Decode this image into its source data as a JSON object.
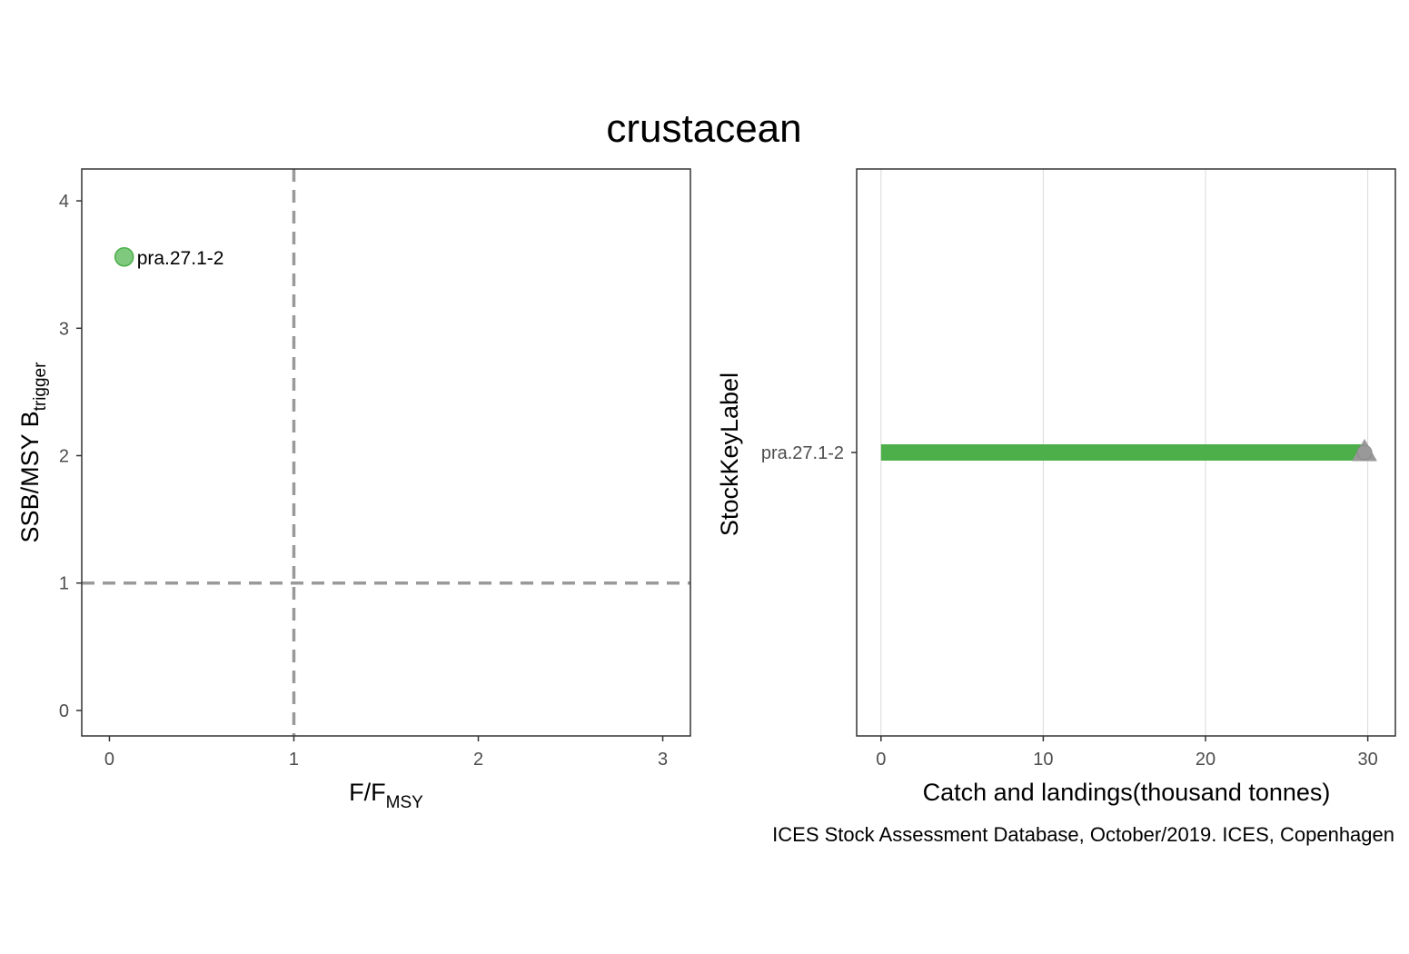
{
  "title": "crustacean",
  "caption": "ICES Stock Assessment Database, October/2019. ICES, Copenhagen",
  "colors": {
    "point_fill": "#7fc97f",
    "point_stroke": "#4daf4a",
    "bar": "#4daf4a",
    "marker": "#999999",
    "ref_line": "#999999",
    "grid": "#d9d9d9",
    "panel_border": "#333333"
  },
  "chart_data": [
    {
      "type": "scatter",
      "xlabel": "F/F",
      "xlabel_sub": "MSY",
      "ylabel": "SSB/MSY B",
      "ylabel_sub": "trigger",
      "xlim": [
        -0.15,
        3.15
      ],
      "ylim": [
        -0.2,
        4.25
      ],
      "x_ticks": [
        0,
        1,
        2,
        3
      ],
      "y_ticks": [
        0,
        1,
        2,
        3,
        4
      ],
      "grid": false,
      "reference_lines": {
        "x": 1,
        "y": 1,
        "style": "dashed"
      },
      "points": [
        {
          "label": "pra.27.1-2",
          "x": 0.08,
          "y": 3.56
        }
      ]
    },
    {
      "type": "bar",
      "orientation": "horizontal",
      "xlabel": "Catch and landings(thousand tonnes)",
      "ylabel": "StockKeyLabel",
      "xlim": [
        -1.5,
        31.7
      ],
      "x_ticks": [
        0,
        10,
        20,
        30
      ],
      "grid": true,
      "categories": [
        "pra.27.1-2"
      ],
      "values": [
        29.8
      ],
      "markers": [
        {
          "category": "pra.27.1-2",
          "value": 29.8,
          "shapes": [
            "circle",
            "triangle"
          ]
        }
      ]
    }
  ]
}
